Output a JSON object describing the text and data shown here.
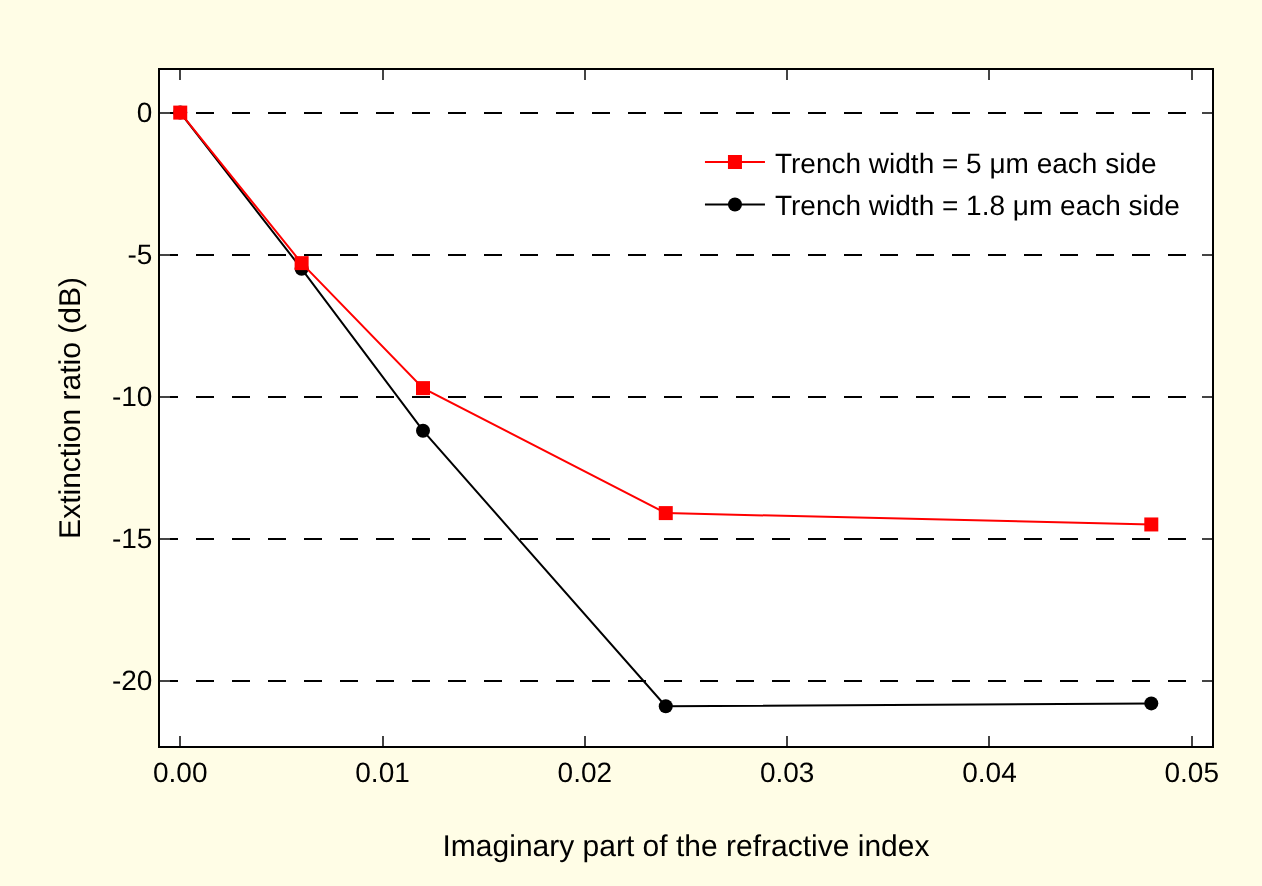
{
  "chart_data": {
    "type": "line",
    "xlabel": "Imaginary part of the refractive index",
    "ylabel": "Extinction ratio (dB)",
    "xlim": [
      -0.001,
      0.051
    ],
    "xticks": [
      {
        "value": 0,
        "label": "0.00"
      },
      {
        "value": 0.01,
        "label": "0.01"
      },
      {
        "value": 0.02,
        "label": "0.02"
      },
      {
        "value": 0.03,
        "label": "0.03"
      },
      {
        "value": 0.04,
        "label": "0.04"
      },
      {
        "value": 0.05,
        "label": "0.05"
      }
    ],
    "ylim": [
      -22.3,
      1.5
    ],
    "yticks": [
      0,
      -5,
      -10,
      -15,
      -20
    ],
    "grid": "y",
    "legend": "top right",
    "series": [
      {
        "name": "Trench width = 5 μm each side",
        "color": "#ff0000",
        "marker": "square",
        "x": [
          0,
          0.006,
          0.012,
          0.024,
          0.048
        ],
        "values": [
          0,
          -5.3,
          -9.7,
          -14.1,
          -14.5
        ]
      },
      {
        "name": "Trench width = 1.8 μm each side",
        "color": "#000000",
        "marker": "circle",
        "x": [
          0,
          0.006,
          0.012,
          0.024,
          0.048
        ],
        "values": [
          0,
          -5.5,
          -11.2,
          -20.9,
          -20.8
        ]
      }
    ]
  }
}
